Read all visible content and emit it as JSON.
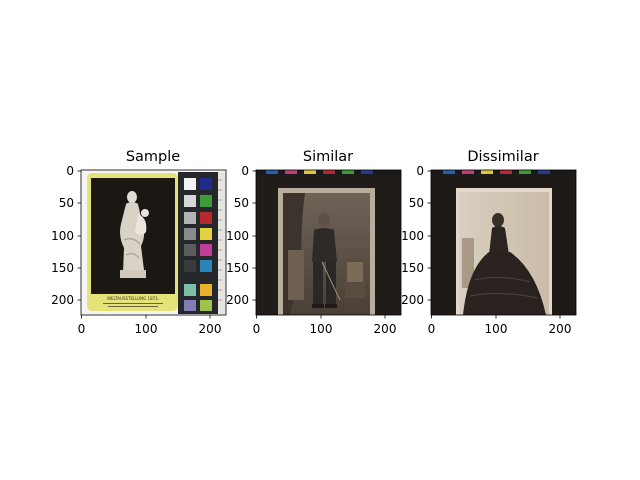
{
  "figure": {
    "panels": [
      {
        "title": "Sample",
        "image": "antique card photograph of a white classical statue (woman with child) on black, yellow card border with printed caption, beside a color-checker chart",
        "caption_text": "WELTAUSSTELLUNG 1873.",
        "x_ticks": [
          "0",
          "100",
          "200"
        ],
        "y_ticks": [
          "0",
          "50",
          "100",
          "150",
          "200"
        ]
      },
      {
        "title": "Similar",
        "image": "sepia carte-de-visite portrait of a standing man in military uniform beside a draped curtain and chair, on a dark background with color strip at top",
        "x_ticks": [
          "0",
          "100",
          "200"
        ],
        "y_ticks": [
          "0",
          "50",
          "100",
          "150",
          "200"
        ]
      },
      {
        "title": "Dissimilar",
        "image": "sepia carte-de-visite portrait of a seated woman in a large dark dress, on a dark background with color strip at top",
        "x_ticks": [
          "0",
          "100",
          "200"
        ],
        "y_ticks": [
          "0",
          "50",
          "100",
          "150",
          "200"
        ]
      }
    ],
    "colors": {
      "axis": "#000000",
      "background": "#ffffff",
      "card_yellow": "#e6e27a",
      "photo_dark": "#1e1a17",
      "sepia": "#8b7a66"
    }
  }
}
